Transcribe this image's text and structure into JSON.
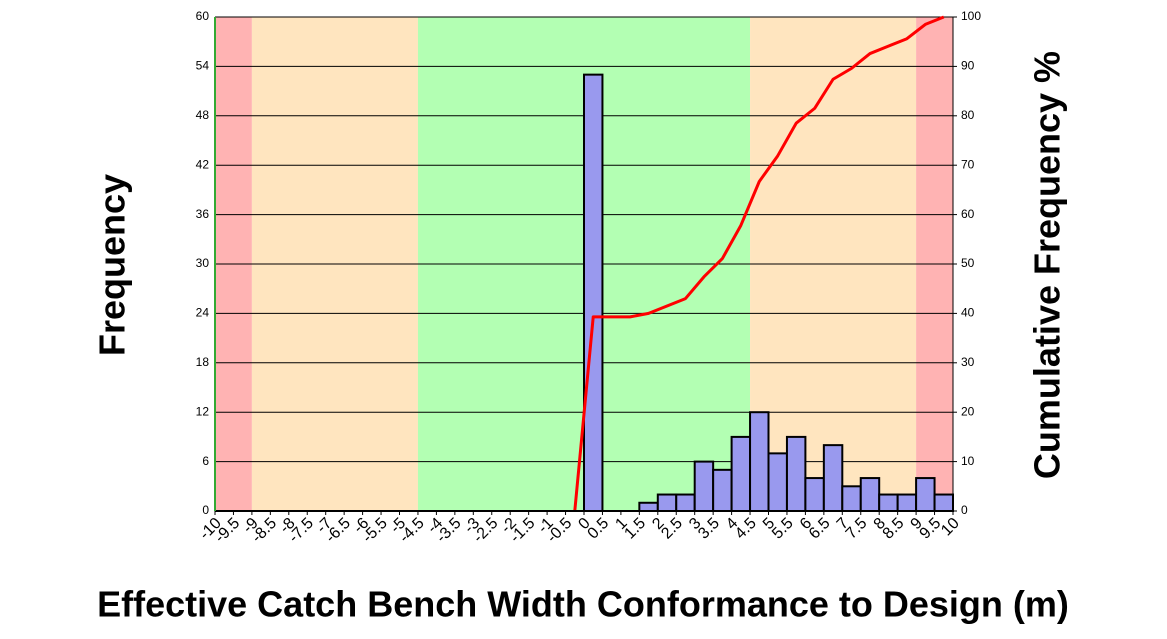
{
  "chart_data": {
    "type": "histogram",
    "ylabel": "Frequency",
    "y2label": "Cumulative Frequency %",
    "xlabel": "Effective Catch Bench Width Conformance to Design (m)",
    "bins": [
      -10,
      -9.5,
      -9,
      -8.5,
      -8,
      -7.5,
      -7,
      -6.5,
      -6,
      -5.5,
      -5,
      -4.5,
      -4,
      -3.5,
      -3,
      -2.5,
      -2,
      -1.5,
      -1,
      -0.5,
      0,
      0.5,
      1,
      1.5,
      2,
      2.5,
      3,
      3.5,
      4,
      4.5,
      5,
      5.5,
      6,
      6.5,
      7,
      7.5,
      8,
      8.5,
      9,
      9.5,
      10
    ],
    "values": [
      0,
      0,
      0,
      0,
      0,
      0,
      0,
      0,
      0,
      0,
      0,
      0,
      0,
      0,
      0,
      0,
      0,
      0,
      0,
      0,
      53,
      0,
      0,
      1,
      2,
      2,
      6,
      5,
      9,
      12,
      7,
      9,
      4,
      8,
      3,
      4,
      2,
      2,
      4,
      2
    ],
    "color": "#9999ee",
    "line": {
      "type": "line",
      "axis": "y2",
      "color": "#ff0000",
      "x": [
        -0.25,
        0.25,
        0.75,
        1.25,
        1.75,
        2.25,
        2.75,
        3.25,
        3.75,
        4.25,
        4.75,
        5.25,
        5.75,
        6.25,
        6.75,
        7.25,
        7.75,
        8.25,
        8.75,
        9.25,
        9.75
      ],
      "values": [
        0,
        39.3,
        39.3,
        39.3,
        40,
        41.5,
        43,
        47.4,
        51.1,
        57.8,
        66.7,
        71.9,
        78.5,
        81.5,
        87.4,
        89.6,
        92.6,
        94.1,
        95.6,
        98.5,
        100
      ]
    },
    "bands": [
      {
        "from": -10,
        "to": -9,
        "color": "#ffb3b3"
      },
      {
        "from": -9,
        "to": -4.5,
        "color": "#ffe5bf"
      },
      {
        "from": -4.5,
        "to": 4.5,
        "color": "#b3ffb3"
      },
      {
        "from": 4.5,
        "to": 9,
        "color": "#ffe5bf"
      },
      {
        "from": 9,
        "to": 10,
        "color": "#ffb3b3"
      }
    ],
    "xlim": [
      -10,
      10
    ],
    "xticks": [
      -10,
      -9.5,
      -9,
      -8.5,
      -8,
      -7.5,
      -7,
      -6.5,
      -6,
      -5.5,
      -5,
      -4.5,
      -4,
      -3.5,
      -3,
      -2.5,
      -2,
      -1.5,
      -1,
      -0.5,
      0,
      0.5,
      1,
      1.5,
      2,
      2.5,
      3,
      3.5,
      4,
      4.5,
      5,
      5.5,
      6,
      6.5,
      7,
      7.5,
      8,
      8.5,
      9,
      9.5,
      10
    ],
    "ylim": [
      0,
      60
    ],
    "yticks": [
      0,
      6,
      12,
      18,
      24,
      30,
      36,
      42,
      48,
      54,
      60
    ],
    "y2lim": [
      0,
      100
    ],
    "y2ticks": [
      0,
      10,
      20,
      30,
      40,
      50,
      60,
      70,
      80,
      90,
      100
    ],
    "grid": true
  }
}
